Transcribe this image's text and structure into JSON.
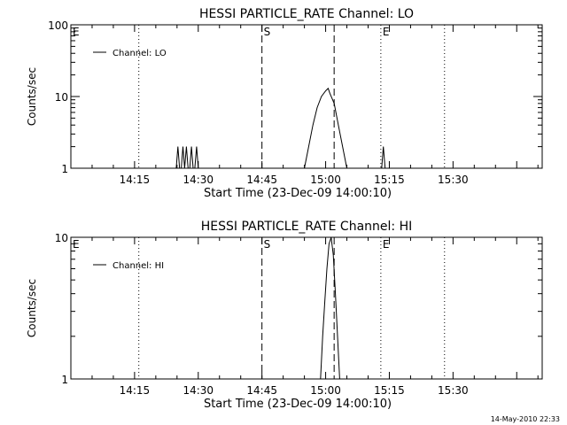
{
  "footer": {
    "timestamp": "14-May-2010 22:33"
  },
  "chart_data": [
    {
      "type": "line",
      "title": "HESSI PARTICLE_RATE Channel: LO",
      "xlabel": "Start Time (23-Dec-09 14:00:10)",
      "ylabel": "Counts/sec",
      "y_scale": "log",
      "ylim": [
        1,
        100
      ],
      "y_ticks": [
        {
          "v": 1,
          "label": "1"
        },
        {
          "v": 10,
          "label": "10"
        },
        {
          "v": 100,
          "label": "100"
        }
      ],
      "xlim_minutes": [
        0,
        111
      ],
      "x_ticks": [
        {
          "v": 15,
          "label": "14:15"
        },
        {
          "v": 30,
          "label": "14:30"
        },
        {
          "v": 45,
          "label": "14:45"
        },
        {
          "v": 60,
          "label": "15:00"
        },
        {
          "v": 75,
          "label": "15:15"
        },
        {
          "v": 90,
          "label": "15:30"
        }
      ],
      "legend": "top-left",
      "grid": false,
      "series": [
        {
          "name": "Channel: LO",
          "x": [
            0,
            24.8,
            25.2,
            25.6,
            26.0,
            26.4,
            26.8,
            27.2,
            27.6,
            28.0,
            28.4,
            28.8,
            29.2,
            29.6,
            30.0,
            30.4,
            55,
            56,
            57,
            58,
            59,
            60,
            60.6,
            61,
            62,
            63,
            64,
            65,
            73.2,
            73.6,
            74.0,
            111
          ],
          "y": [
            1,
            1,
            2,
            1,
            1,
            2,
            1,
            2,
            1,
            1,
            2,
            1,
            1,
            2,
            1,
            1,
            1,
            2,
            4,
            7,
            10,
            12,
            13,
            11,
            8,
            4,
            2,
            1,
            1,
            2,
            1,
            1
          ]
        }
      ],
      "markers": [
        {
          "label": "E",
          "x": 0,
          "style": "none"
        },
        {
          "label": "",
          "x": 16,
          "style": "dotted"
        },
        {
          "label": "S",
          "x": 45,
          "style": "dashed"
        },
        {
          "label": "",
          "x": 62,
          "style": "dashed"
        },
        {
          "label": "E",
          "x": 73,
          "style": "dotted"
        },
        {
          "label": "",
          "x": 88,
          "style": "dotted"
        }
      ]
    },
    {
      "type": "line",
      "title": "HESSI PARTICLE_RATE Channel: HI",
      "xlabel": "Start Time (23-Dec-09 14:00:10)",
      "ylabel": "Counts/sec",
      "y_scale": "log",
      "ylim": [
        1,
        10
      ],
      "y_ticks": [
        {
          "v": 1,
          "label": "1"
        },
        {
          "v": 10,
          "label": "10"
        }
      ],
      "xlim_minutes": [
        0,
        111
      ],
      "x_ticks": [
        {
          "v": 15,
          "label": "14:15"
        },
        {
          "v": 30,
          "label": "14:30"
        },
        {
          "v": 45,
          "label": "14:45"
        },
        {
          "v": 60,
          "label": "15:00"
        },
        {
          "v": 75,
          "label": "15:15"
        },
        {
          "v": 90,
          "label": "15:30"
        }
      ],
      "legend": "top-left",
      "grid": false,
      "series": [
        {
          "name": "Channel: HI",
          "x": [
            58.8,
            59.3,
            59.8,
            60.3,
            60.8,
            61.3,
            61.8,
            62.3,
            62.8,
            63.3
          ],
          "y": [
            1,
            2,
            3.5,
            6,
            9,
            10,
            7.5,
            4,
            2,
            1
          ]
        }
      ],
      "markers": [
        {
          "label": "E",
          "x": 0,
          "style": "none"
        },
        {
          "label": "",
          "x": 16,
          "style": "dotted"
        },
        {
          "label": "S",
          "x": 45,
          "style": "dashed"
        },
        {
          "label": "",
          "x": 62,
          "style": "dashed"
        },
        {
          "label": "E",
          "x": 73,
          "style": "dotted"
        },
        {
          "label": "",
          "x": 88,
          "style": "dotted"
        }
      ]
    }
  ]
}
